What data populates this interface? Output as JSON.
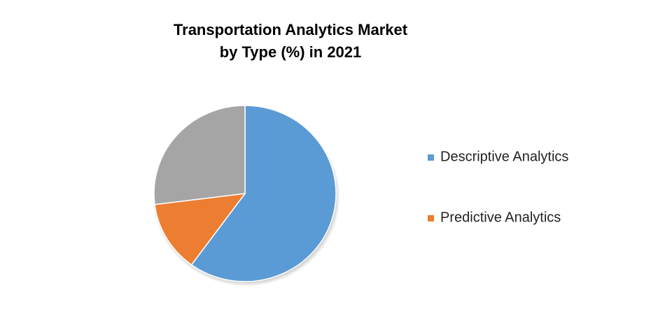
{
  "chart_data": {
    "type": "pie",
    "title": [
      "Transportation Analytics Market",
      "by Type (%) in 2021"
    ],
    "categories": [
      "Descriptive Analytics",
      "Predictive Analytics",
      null
    ],
    "values": [
      60,
      13,
      27
    ],
    "colors": [
      "#5b9bd5",
      "#ed7d31",
      "#a5a5a5"
    ],
    "legend": "right"
  }
}
